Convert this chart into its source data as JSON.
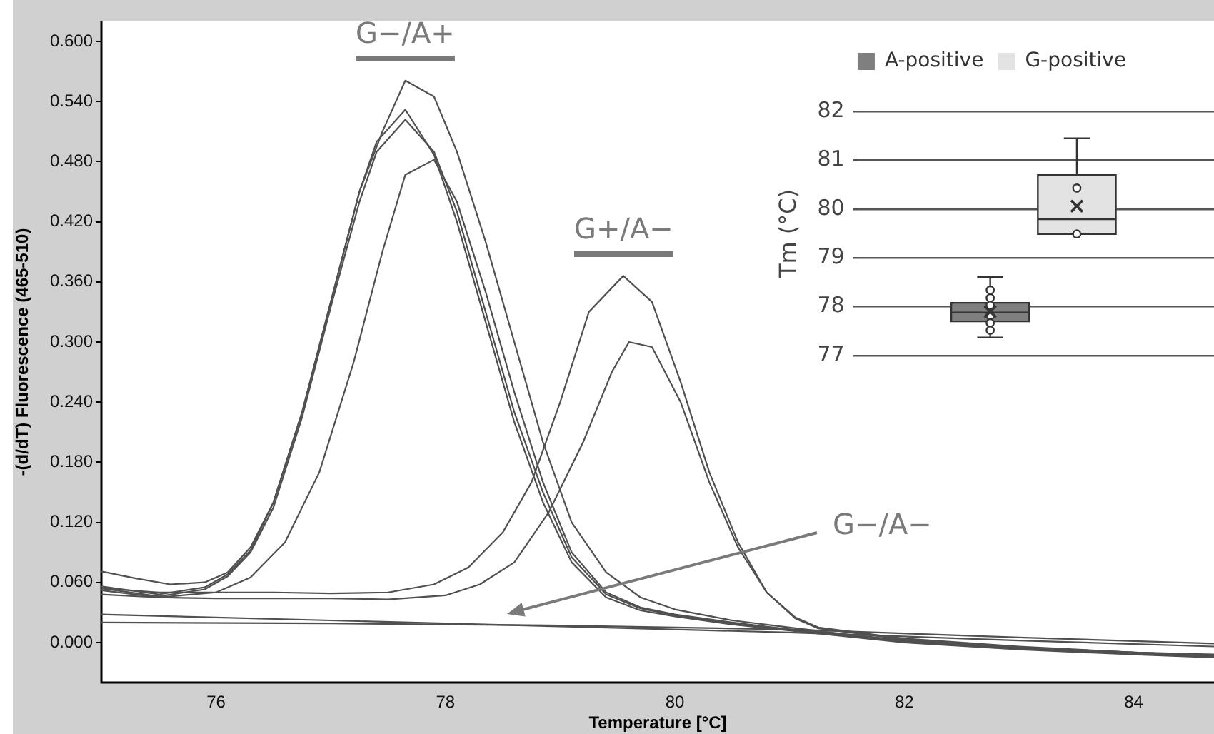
{
  "chart_data": [
    {
      "type": "line",
      "xlabel": "Temperature [°C]",
      "ylabel": "-(d/dT) Fluorescence (465-510)",
      "xlim": [
        75,
        84.7
      ],
      "ylim": [
        -0.04,
        0.62
      ],
      "xticks": [
        76,
        78,
        80,
        82,
        84
      ],
      "yticks": [
        {
          "value": 0,
          "label": "0.000"
        },
        {
          "value": 0.06,
          "label": "0.060"
        },
        {
          "value": 0.12,
          "label": "0.120"
        },
        {
          "value": 0.18,
          "label": "0.180"
        },
        {
          "value": 0.24,
          "label": "0.240"
        },
        {
          "value": 0.3,
          "label": "0.300"
        },
        {
          "value": 0.36,
          "label": "0.360"
        },
        {
          "value": 0.42,
          "label": "0.420"
        },
        {
          "value": 0.48,
          "label": "0.480"
        },
        {
          "value": 0.54,
          "label": "0.540"
        },
        {
          "value": 0.6,
          "label": "0.600"
        }
      ],
      "grid": false,
      "legend": false,
      "series": [
        {
          "color": "#505050",
          "x": [
            75,
            75.3,
            75.6,
            75.9,
            76.1,
            76.3,
            76.5,
            76.75,
            77,
            77.25,
            77.45,
            77.65,
            77.9,
            78.1,
            78.35,
            78.6,
            78.85,
            79.1,
            79.4,
            79.7,
            80,
            80.5,
            81,
            81.5,
            82,
            83,
            84,
            84.7
          ],
          "values": [
            0.071,
            0.064,
            0.058,
            0.06,
            0.07,
            0.095,
            0.14,
            0.23,
            0.34,
            0.45,
            0.51,
            0.561,
            0.545,
            0.49,
            0.4,
            0.3,
            0.2,
            0.12,
            0.07,
            0.045,
            0.033,
            0.022,
            0.015,
            0.008,
            0.002,
            -0.005,
            -0.01,
            -0.013
          ]
        },
        {
          "color": "#505050",
          "x": [
            75,
            75.5,
            75.9,
            76.1,
            76.3,
            76.5,
            76.75,
            77,
            77.25,
            77.4,
            77.65,
            77.9,
            78.1,
            78.35,
            78.6,
            78.85,
            79.1,
            79.4,
            79.7,
            80,
            80.5,
            81,
            82,
            83,
            84,
            84.7
          ],
          "values": [
            0.056,
            0.048,
            0.055,
            0.068,
            0.092,
            0.14,
            0.23,
            0.34,
            0.45,
            0.5,
            0.532,
            0.487,
            0.42,
            0.32,
            0.22,
            0.14,
            0.08,
            0.045,
            0.032,
            0.026,
            0.018,
            0.012,
            0.0,
            -0.007,
            -0.012,
            -0.015
          ]
        },
        {
          "color": "#505050",
          "x": [
            75,
            75.5,
            75.9,
            76.1,
            76.3,
            76.5,
            76.75,
            77,
            77.25,
            77.4,
            77.65,
            77.9,
            78.1,
            78.35,
            78.6,
            78.85,
            79.1,
            79.4,
            79.7,
            80,
            80.5,
            81,
            82,
            83,
            84,
            84.7
          ],
          "values": [
            0.054,
            0.046,
            0.053,
            0.066,
            0.09,
            0.135,
            0.225,
            0.335,
            0.44,
            0.49,
            0.522,
            0.49,
            0.43,
            0.33,
            0.23,
            0.15,
            0.085,
            0.048,
            0.034,
            0.027,
            0.019,
            0.013,
            0.001,
            -0.006,
            -0.011,
            -0.014
          ]
        },
        {
          "color": "#505050",
          "x": [
            75,
            75.5,
            76,
            76.3,
            76.6,
            76.9,
            77.2,
            77.45,
            77.65,
            77.9,
            78.1,
            78.35,
            78.6,
            78.85,
            79.1,
            79.4,
            79.7,
            80,
            80.5,
            81,
            82,
            83,
            84,
            84.7
          ],
          "values": [
            0.052,
            0.045,
            0.05,
            0.065,
            0.1,
            0.17,
            0.28,
            0.39,
            0.467,
            0.482,
            0.44,
            0.35,
            0.25,
            0.16,
            0.09,
            0.05,
            0.035,
            0.028,
            0.02,
            0.013,
            0.002,
            -0.005,
            -0.01,
            -0.013
          ]
        },
        {
          "color": "#505050",
          "x": [
            75,
            75.5,
            76,
            76.5,
            77,
            77.5,
            77.9,
            78.2,
            78.5,
            78.75,
            79,
            79.25,
            79.55,
            79.8,
            80.05,
            80.3,
            80.55,
            80.8,
            81.05,
            81.25,
            82,
            83,
            84,
            84.7
          ],
          "values": [
            0.054,
            0.05,
            0.05,
            0.05,
            0.049,
            0.05,
            0.058,
            0.075,
            0.11,
            0.16,
            0.24,
            0.33,
            0.366,
            0.34,
            0.26,
            0.17,
            0.1,
            0.05,
            0.025,
            0.015,
            0.004,
            -0.004,
            -0.01,
            -0.012
          ]
        },
        {
          "color": "#505050",
          "x": [
            75,
            75.5,
            76,
            76.5,
            77,
            77.5,
            78,
            78.3,
            78.6,
            78.9,
            79.2,
            79.45,
            79.6,
            79.8,
            80.05,
            80.3,
            80.55,
            80.8,
            81.05,
            81.25,
            82,
            83,
            84,
            84.7
          ],
          "values": [
            0.048,
            0.045,
            0.044,
            0.044,
            0.044,
            0.043,
            0.047,
            0.058,
            0.08,
            0.13,
            0.2,
            0.27,
            0.3,
            0.295,
            0.24,
            0.16,
            0.095,
            0.05,
            0.024,
            0.014,
            0.003,
            -0.005,
            -0.011,
            -0.013
          ]
        },
        {
          "color": "#505050",
          "x": [
            75,
            77,
            79,
            81,
            83,
            84.7
          ],
          "values": [
            0.028,
            0.022,
            0.016,
            0.01,
            0.002,
            -0.004
          ]
        },
        {
          "color": "#505050",
          "x": [
            75,
            77,
            79,
            81,
            83,
            84.7
          ],
          "values": [
            0.02,
            0.019,
            0.017,
            0.013,
            0.005,
            -0.001
          ]
        }
      ],
      "annotations": [
        "G−/A+",
        "G+/A−",
        "G−/A−"
      ]
    },
    {
      "type": "box",
      "ylabel": "Tm (°C)",
      "categories": [
        null
      ],
      "ylim": [
        77,
        82
      ],
      "yticks": [
        77,
        78,
        79,
        80,
        81,
        82
      ],
      "grid": "y",
      "legend": "top",
      "tick_labels": "y",
      "series": [
        {
          "name": "A-positive",
          "color": "#7f7f7f",
          "boxes": [
            {
              "low": 77.37,
              "q1": 77.7,
              "median": 77.88,
              "q3": 78.08,
              "high": 78.61,
              "mean": 77.9,
              "outliers": [
                78.34,
                78.18,
                78.03,
                77.82,
                77.67,
                77.52
              ]
            }
          ]
        },
        {
          "name": "G-positive",
          "color": "#e3e3e3",
          "boxes": [
            {
              "low": 79.49,
              "q1": 79.49,
              "median": 79.79,
              "q3": 80.7,
              "high": 81.45,
              "mean": 80.06,
              "outliers": [
                80.43,
                79.49
              ]
            }
          ]
        }
      ]
    }
  ]
}
